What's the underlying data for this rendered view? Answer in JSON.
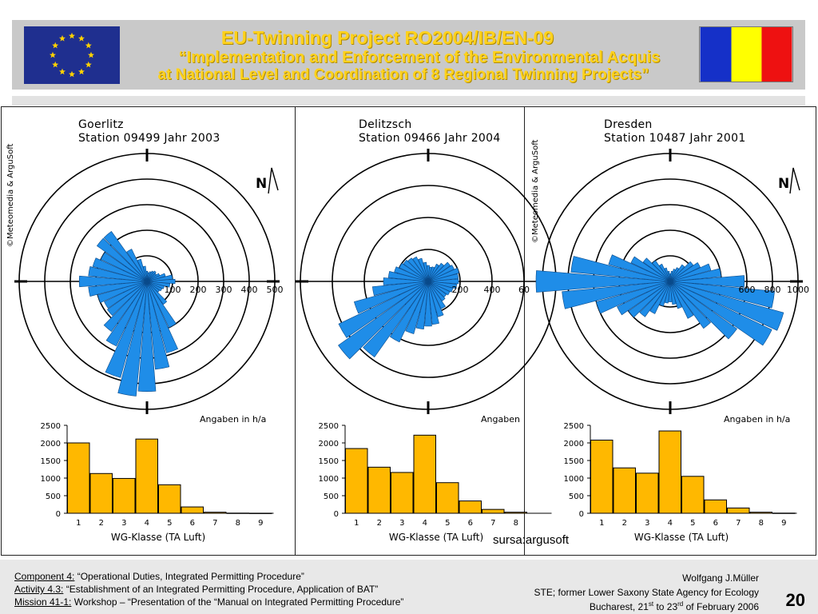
{
  "header": {
    "title": "EU-Twinning  Project  RO2004/IB/EN-09",
    "subtitle_line1": "“Implementation and Enforcement of the Environmental Acquis",
    "subtitle_line2": "at National Level and Coordination of 8 Regional Twinning Projects”",
    "flag_colors": {
      "eu_blue": "#1f2f8f",
      "eu_star": "#ffd200",
      "ro_blue": "#1530c8",
      "ro_yellow": "#ffff00",
      "ro_red": "#ee1111"
    }
  },
  "chart_data": [
    {
      "type": "polar-bar",
      "title_line1": "Goerlitz",
      "title_line2": "Station 09499   Jahr 2003",
      "copyright": "©Meteomedia & ArguSoft",
      "north_label": "N",
      "units_label": "Angaben in h/a",
      "radial_ticks": [
        "100",
        "200",
        "300",
        "400",
        "500"
      ],
      "radial_max": 500,
      "directions_deg": [
        0,
        10,
        20,
        30,
        40,
        50,
        60,
        70,
        80,
        90,
        100,
        110,
        120,
        130,
        140,
        150,
        160,
        170,
        180,
        190,
        200,
        210,
        220,
        230,
        240,
        250,
        260,
        270,
        280,
        290,
        300,
        310,
        320,
        330,
        340,
        350
      ],
      "values": [
        40,
        35,
        40,
        45,
        50,
        45,
        55,
        75,
        100,
        110,
        90,
        70,
        65,
        60,
        110,
        200,
        290,
        345,
        430,
        450,
        390,
        280,
        240,
        190,
        185,
        200,
        230,
        265,
        230,
        220,
        200,
        240,
        240,
        140,
        90,
        60
      ]
    },
    {
      "type": "polar-bar",
      "title_line1": "Delitzsch",
      "title_line2": "Station 09466   Jahr 2004",
      "north_label": "N",
      "units_label": "Angaben",
      "radial_ticks": [
        "200",
        "400",
        "60"
      ],
      "radial_max": 800,
      "directions_deg": [
        0,
        10,
        20,
        30,
        40,
        50,
        60,
        70,
        80,
        90,
        100,
        110,
        120,
        130,
        140,
        150,
        160,
        170,
        180,
        190,
        200,
        210,
        220,
        230,
        240,
        250,
        260,
        270,
        280,
        290,
        300,
        310,
        320,
        330,
        340,
        350
      ],
      "values": [
        100,
        90,
        95,
        120,
        140,
        170,
        180,
        200,
        190,
        190,
        180,
        160,
        150,
        140,
        150,
        190,
        230,
        270,
        280,
        300,
        340,
        420,
        580,
        690,
        620,
        480,
        350,
        280,
        250,
        220,
        200,
        190,
        180,
        170,
        150,
        120
      ]
    },
    {
      "type": "polar-bar",
      "title_line1": "Dresden",
      "title_line2": "Station 10487   Jahr 2001",
      "copyright": "©Meteomedia & ArguSoft",
      "north_label": "N",
      "units_label": "Angaben in h/a",
      "radial_ticks": [
        "600",
        "800",
        "1000"
      ],
      "radial_max": 1000,
      "directions_deg": [
        0,
        10,
        20,
        30,
        40,
        50,
        60,
        70,
        80,
        90,
        100,
        110,
        120,
        130,
        140,
        150,
        160,
        170,
        180,
        190,
        200,
        210,
        220,
        230,
        240,
        250,
        260,
        270,
        280,
        290,
        300,
        310,
        320,
        330,
        340,
        350
      ],
      "values": [
        60,
        80,
        100,
        120,
        160,
        220,
        260,
        330,
        400,
        580,
        820,
        920,
        880,
        640,
        450,
        320,
        220,
        180,
        160,
        170,
        200,
        280,
        340,
        400,
        460,
        600,
        850,
        1050,
        780,
        500,
        340,
        260,
        200,
        150,
        110,
        80
      ]
    },
    {
      "type": "bar",
      "xlabel": "WG-Klasse (TA Luft)",
      "categories": [
        "1",
        "2",
        "3",
        "4",
        "5",
        "6",
        "7",
        "8",
        "9"
      ],
      "values": [
        2000,
        1130,
        990,
        2110,
        810,
        180,
        30,
        5,
        2
      ],
      "yticks": [
        "0",
        "500",
        "1000",
        "1500",
        "2000",
        "2500"
      ],
      "ylim": [
        0,
        2500
      ]
    },
    {
      "type": "bar",
      "xlabel": "WG-Klasse (TA Luft)",
      "categories": [
        "1",
        "2",
        "3",
        "4",
        "5",
        "6",
        "7",
        "8"
      ],
      "values": [
        1840,
        1310,
        1160,
        2220,
        870,
        350,
        110,
        30
      ],
      "yticks": [
        "0",
        "500",
        "1000",
        "1500",
        "2000",
        "2500"
      ],
      "ylim": [
        0,
        2500
      ]
    },
    {
      "type": "bar",
      "xlabel": "WG-Klasse (TA Luft)",
      "categories": [
        "1",
        "2",
        "3",
        "4",
        "5",
        "6",
        "7",
        "8",
        "9"
      ],
      "values": [
        2080,
        1290,
        1140,
        2340,
        1050,
        380,
        150,
        30,
        5
      ],
      "yticks": [
        "0",
        "500",
        "1000",
        "1500",
        "2000",
        "2500"
      ],
      "ylim": [
        0,
        2500
      ]
    }
  ],
  "source_label": "sursa:argusoft",
  "footer": {
    "line1_label": "Component 4:",
    "line1_text": " “Operational Duties, Integrated Permitting Procedure”",
    "line2_label": "Activity 4.3:",
    "line2_text": " “Establishment of an Integrated Permitting Procedure, Application of BAT”",
    "line3_label": "Mission 41-1:",
    "line3_text": " Workshop – “Presentation of the “Manual on Integrated Permitting Procedure”",
    "author": "Wolfgang J.Müller",
    "affiliation": "STE; former Lower Saxony State Agency for Ecology",
    "date_prefix": "Bucharest, 21",
    "date_sup1": "st",
    "date_mid": " to 23",
    "date_sup2": "rd",
    "date_suffix": " of February 2006",
    "page_number": "20"
  },
  "colors": {
    "rose_fill": "#1f8de8",
    "hist_fill": "#ffb800",
    "header_text": "#ffd21c"
  }
}
